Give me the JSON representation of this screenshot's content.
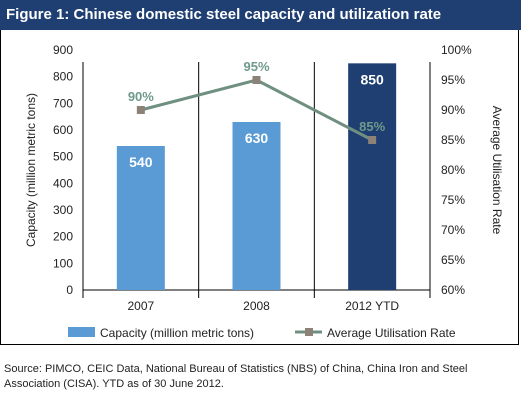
{
  "header": {
    "title": "Figure 1: Chinese domestic steel capacity and utilization rate"
  },
  "chart_data": {
    "type": "bar",
    "categories": [
      "2007",
      "2008",
      "2012 YTD"
    ],
    "series": [
      {
        "name": "Capacity (million metric tons)",
        "type": "bar",
        "axis": "left",
        "values": [
          540,
          630,
          850
        ],
        "data_labels": [
          "540",
          "630",
          "850"
        ],
        "colors": [
          "#5b9bd5",
          "#5b9bd5",
          "#1f3f73"
        ]
      },
      {
        "name": "Average Utilisation Rate",
        "type": "line",
        "axis": "right",
        "values": [
          90,
          95,
          85
        ],
        "data_labels": [
          "90%",
          "95%",
          "85%"
        ],
        "line_color": "#6f9080",
        "marker_color": "#8c8278",
        "label_color": "#6f9a8a"
      }
    ],
    "ylabel": "Capacity (million metric tons)",
    "y2label": "Average Utilisation Rate",
    "ylim": [
      0,
      900
    ],
    "y2lim": [
      60,
      100
    ],
    "yticks": [
      "0",
      "100",
      "200",
      "300",
      "400",
      "500",
      "600",
      "700",
      "800",
      "900"
    ],
    "y2ticks": [
      "60%",
      "65%",
      "70%",
      "75%",
      "80%",
      "85%",
      "90%",
      "95%",
      "100%"
    ],
    "grid": false,
    "legend": "bottom"
  },
  "footer": {
    "source": "Source: PIMCO, CEIC Data, National Bureau of Statistics (NBS) of China, China Iron and Steel Association (CISA). YTD as of 30 June 2012."
  }
}
